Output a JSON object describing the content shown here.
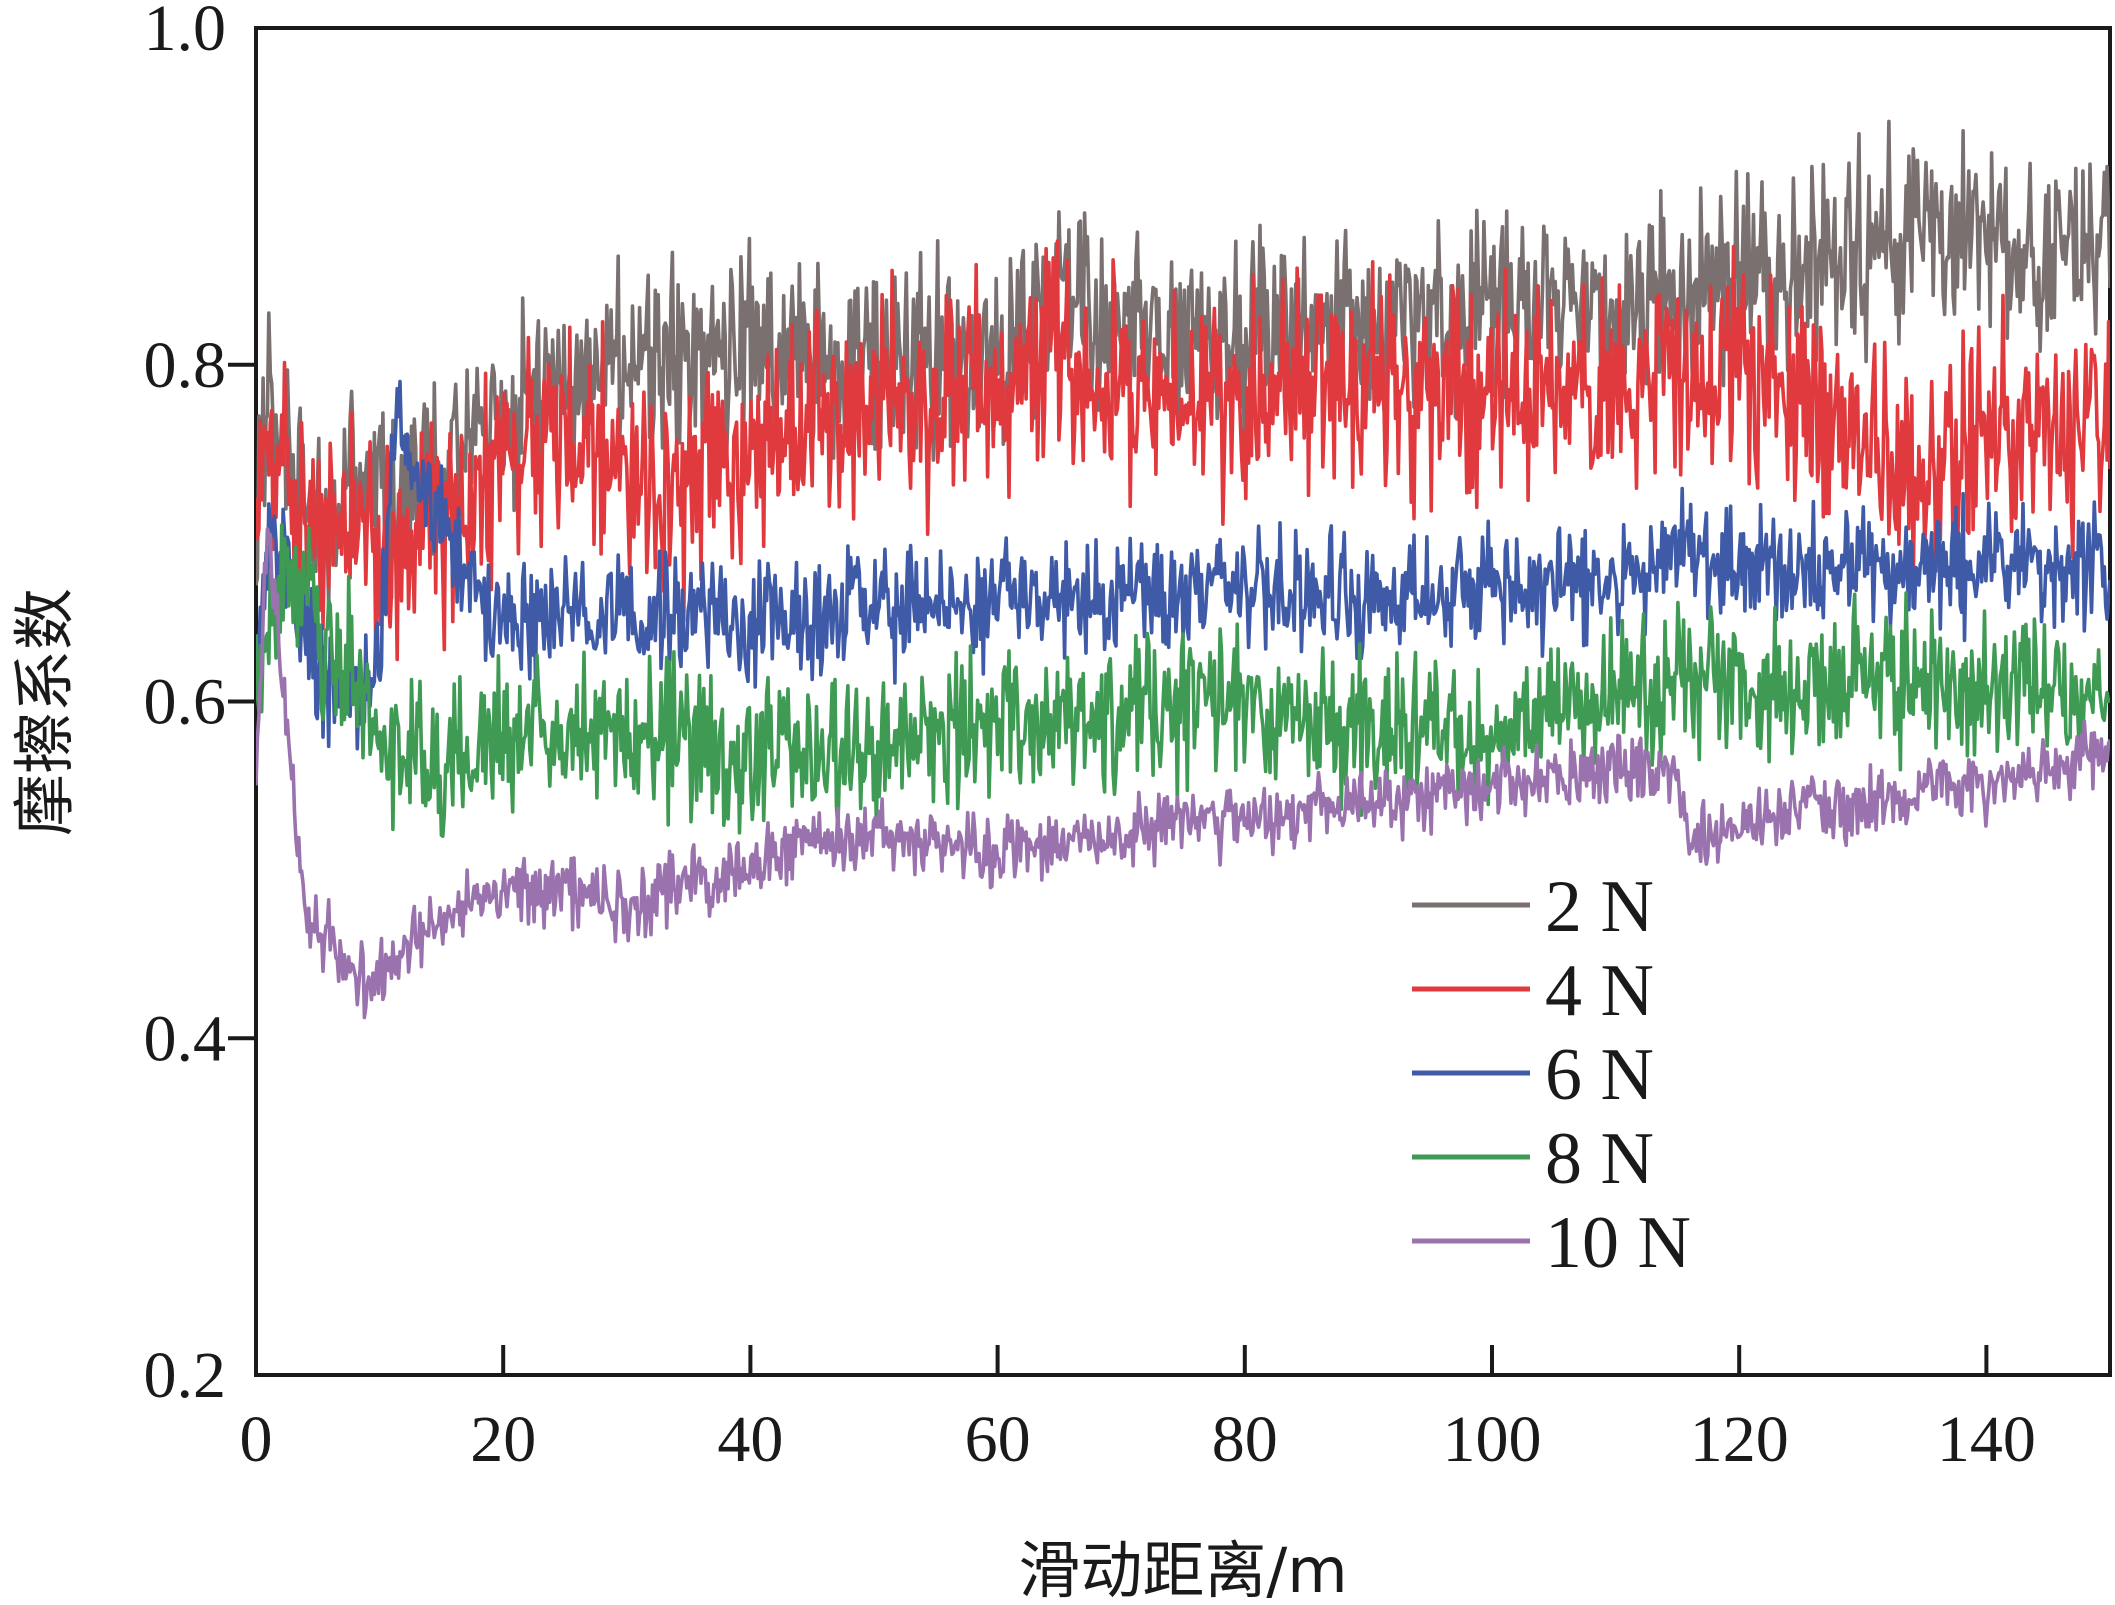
{
  "chart_data": {
    "type": "line",
    "title": "",
    "xlabel": "滑动距离/m",
    "ylabel": "摩擦系数",
    "xlim": [
      0,
      150
    ],
    "ylim": [
      0.2,
      1.0
    ],
    "xticks": [
      0,
      20,
      40,
      60,
      80,
      100,
      120,
      140
    ],
    "xtick_labels": [
      "0",
      "20",
      "40",
      "60",
      "80",
      "100",
      "120",
      "140"
    ],
    "yticks": [
      0.2,
      0.4,
      0.6,
      0.8,
      1.0
    ],
    "ytick_labels": [
      "0.2",
      "0.4",
      "0.6",
      "0.8",
      "1.0"
    ],
    "grid": false,
    "legend_position": "lower-right",
    "series": [
      {
        "name": "2 N",
        "color": "#7a7070",
        "noise": 0.045,
        "x": [
          0,
          1,
          3,
          5,
          8,
          12,
          16,
          20,
          25,
          30,
          40,
          50,
          60,
          65,
          70,
          80,
          90,
          100,
          110,
          115,
          120,
          125,
          130,
          135,
          140,
          145,
          150
        ],
        "y": [
          0.7,
          0.78,
          0.73,
          0.72,
          0.72,
          0.73,
          0.75,
          0.77,
          0.8,
          0.8,
          0.81,
          0.81,
          0.8,
          0.84,
          0.82,
          0.82,
          0.83,
          0.83,
          0.83,
          0.84,
          0.86,
          0.86,
          0.87,
          0.88,
          0.87,
          0.86,
          0.88
        ]
      },
      {
        "name": "4 N",
        "color": "#e0393e",
        "noise": 0.05,
        "x": [
          0,
          1,
          3,
          5,
          8,
          10,
          15,
          20,
          25,
          30,
          35,
          40,
          50,
          60,
          65,
          70,
          80,
          90,
          100,
          110,
          115,
          120,
          125,
          130,
          135,
          140,
          145,
          150
        ],
        "y": [
          0.73,
          0.75,
          0.72,
          0.71,
          0.71,
          0.69,
          0.71,
          0.74,
          0.77,
          0.73,
          0.72,
          0.75,
          0.78,
          0.78,
          0.81,
          0.78,
          0.78,
          0.79,
          0.78,
          0.79,
          0.81,
          0.79,
          0.78,
          0.75,
          0.72,
          0.76,
          0.76,
          0.75
        ]
      },
      {
        "name": "6 N",
        "color": "#3f5ba8",
        "noise": 0.028,
        "x": [
          0,
          1,
          3,
          5,
          8,
          10,
          11,
          15,
          20,
          25,
          30,
          35,
          40,
          50,
          60,
          70,
          80,
          90,
          100,
          110,
          115,
          120,
          130,
          140,
          150
        ],
        "y": [
          0.62,
          0.7,
          0.66,
          0.62,
          0.6,
          0.62,
          0.76,
          0.71,
          0.64,
          0.66,
          0.65,
          0.65,
          0.65,
          0.65,
          0.66,
          0.66,
          0.67,
          0.66,
          0.67,
          0.67,
          0.69,
          0.68,
          0.68,
          0.68,
          0.68
        ]
      },
      {
        "name": "8 N",
        "color": "#3f9a54",
        "noise": 0.035,
        "x": [
          0,
          1,
          2,
          4,
          6,
          8,
          10,
          13,
          15,
          20,
          30,
          40,
          50,
          60,
          70,
          80,
          90,
          100,
          110,
          120,
          130,
          140,
          150
        ],
        "y": [
          0.6,
          0.64,
          0.68,
          0.66,
          0.63,
          0.62,
          0.58,
          0.56,
          0.56,
          0.58,
          0.58,
          0.57,
          0.57,
          0.59,
          0.59,
          0.6,
          0.58,
          0.58,
          0.61,
          0.61,
          0.61,
          0.61,
          0.6
        ]
      },
      {
        "name": "10 N",
        "color": "#9a73ae",
        "noise": 0.016,
        "x": [
          0,
          1,
          2,
          3,
          4,
          6,
          8,
          10,
          15,
          20,
          25,
          30,
          35,
          40,
          45,
          50,
          60,
          70,
          80,
          90,
          100,
          110,
          115,
          116,
          120,
          130,
          140,
          145,
          150
        ],
        "y": [
          0.56,
          0.7,
          0.62,
          0.54,
          0.47,
          0.46,
          0.43,
          0.44,
          0.47,
          0.49,
          0.49,
          0.48,
          0.49,
          0.5,
          0.52,
          0.52,
          0.51,
          0.52,
          0.53,
          0.54,
          0.55,
          0.56,
          0.56,
          0.52,
          0.53,
          0.54,
          0.55,
          0.56,
          0.57
        ]
      }
    ]
  }
}
